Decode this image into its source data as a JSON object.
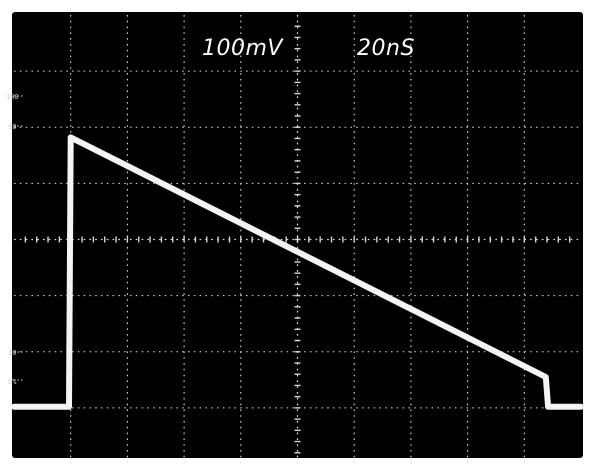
{
  "colors": {
    "screen_background": "#000000",
    "bezel": "#ffffff",
    "graticule": "#d8d8d8",
    "trace": "#f4f4f4"
  },
  "display": {
    "volts_per_div": "100mV",
    "time_per_div": "20nS",
    "rise_marks": [
      "100",
      "90",
      "10",
      "0%"
    ]
  },
  "chart_data": {
    "type": "line",
    "grid": true,
    "x_divisions": 10,
    "y_divisions": 8,
    "xlim": [
      0,
      10
    ],
    "ylim": [
      0,
      8
    ],
    "series": [
      {
        "values": [
          {
            "x": 0.0,
            "y": 1.02
          },
          {
            "x": 0.97,
            "y": 1.02
          },
          {
            "x": 1.0,
            "y": 5.82
          },
          {
            "x": 9.38,
            "y": 1.55
          },
          {
            "x": 9.42,
            "y": 1.02
          },
          {
            "x": 10.0,
            "y": 1.02
          }
        ]
      }
    ]
  }
}
